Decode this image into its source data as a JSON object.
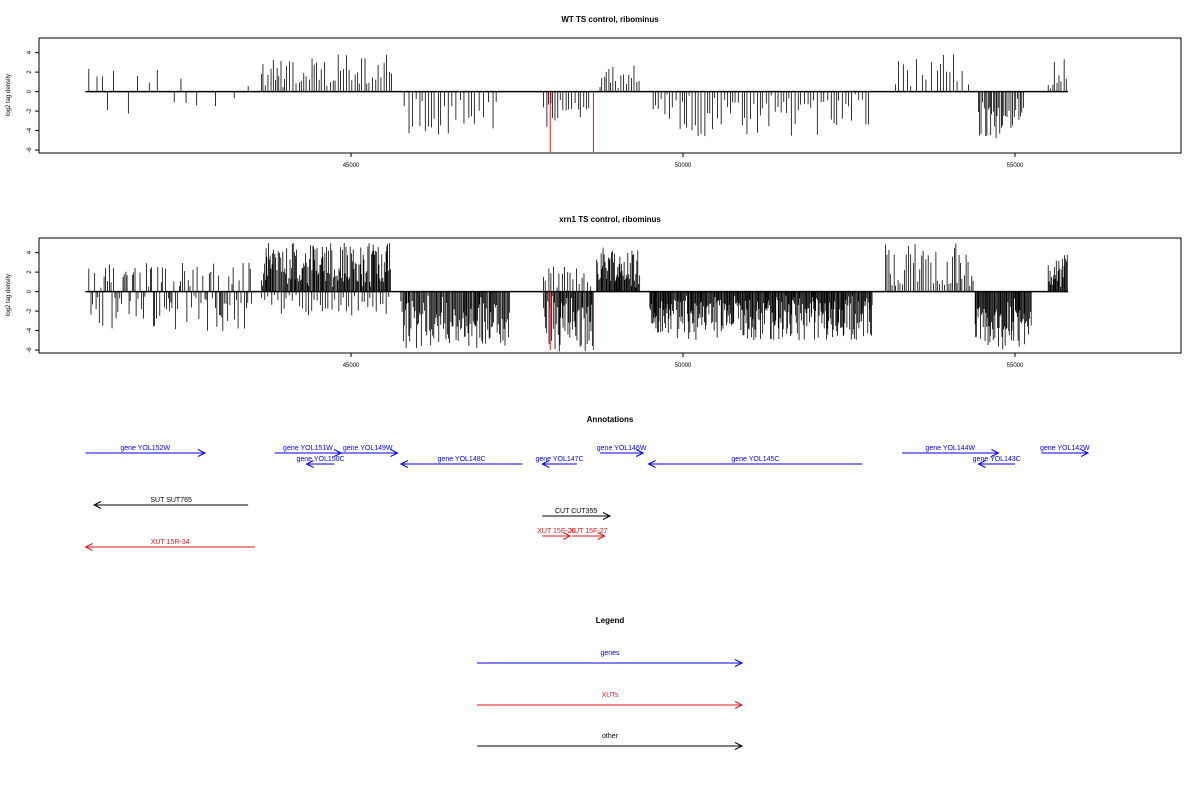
{
  "chart_data": [
    {
      "type": "bar",
      "title": "WT TS control, ribominus",
      "ylabel": "log2 tag density",
      "xlim": [
        40300,
        57500
      ],
      "ylim": [
        -6.3,
        5.5
      ],
      "yticks": [
        -6,
        -4,
        -2,
        0,
        2,
        4
      ],
      "xticks": [
        45000,
        50000,
        55000
      ],
      "xtick_labels": [
        "45000",
        "50000",
        "55000"
      ],
      "baseline": {
        "from": 41000,
        "to": 55800
      },
      "highlight_color": "#e31a1c",
      "highlights": [
        {
          "x": 48000,
          "y": -6.2
        },
        {
          "x": 48650,
          "y": -6.2
        }
      ],
      "regions": [
        {
          "from": 41050,
          "to": 43500,
          "step": 100,
          "mode": "sparse",
          "ymax": 2.3,
          "ymin": -3.0
        },
        {
          "from": 43650,
          "to": 45650,
          "step": 38,
          "mode": "pos",
          "ymax": 3.8,
          "ymin": 0.8
        },
        {
          "from": 45800,
          "to": 47200,
          "step": 55,
          "mode": "neg",
          "ymax": -0.6,
          "ymin": -4.5
        },
        {
          "from": 47900,
          "to": 48600,
          "step": 40,
          "mode": "neg",
          "ymax": -1.0,
          "ymin": -4.2
        },
        {
          "from": 48750,
          "to": 49350,
          "step": 35,
          "mode": "pos",
          "ymax": 2.8,
          "ymin": 0.6
        },
        {
          "from": 49550,
          "to": 52800,
          "step": 45,
          "mode": "neg",
          "ymax": -0.6,
          "ymin": -4.6
        },
        {
          "from": 53200,
          "to": 54350,
          "step": 70,
          "mode": "pos",
          "ymax": 4.0,
          "ymin": 0.5
        },
        {
          "from": 54450,
          "to": 55150,
          "step": 22,
          "mode": "neg",
          "ymax": -1.5,
          "ymin": -5.0
        },
        {
          "from": 55500,
          "to": 55800,
          "step": 35,
          "mode": "pos",
          "ymax": 3.8,
          "ymin": 0.6
        }
      ]
    },
    {
      "type": "bar",
      "title": "xrn1 TS control, ribominus",
      "ylabel": "log2 tag density",
      "xlim": [
        40300,
        57500
      ],
      "ylim": [
        -6.3,
        5.5
      ],
      "yticks": [
        -6,
        -4,
        -2,
        0,
        2,
        4
      ],
      "xticks": [
        45000,
        50000,
        55000
      ],
      "xtick_labels": [
        "45000",
        "50000",
        "55000"
      ],
      "baseline": {
        "from": 41000,
        "to": 55800
      },
      "highlight_color": "#e31a1c",
      "highlights": [
        {
          "x": 48000,
          "y": -6.0
        },
        {
          "x": 48650,
          "y": -6.0
        }
      ],
      "regions": [
        {
          "from": 41050,
          "to": 43500,
          "step": 24,
          "mode": "mixed",
          "ymax": 2.8,
          "ymin": -3.8
        },
        {
          "from": 43650,
          "to": 45600,
          "step": 14,
          "mode": "pos",
          "ymax": 5.0,
          "ymin": 1.0
        },
        {
          "from": 43650,
          "to": 45600,
          "step": 45,
          "mode": "neg",
          "ymax": -0.5,
          "ymin": -2.6
        },
        {
          "from": 45750,
          "to": 47400,
          "step": 16,
          "mode": "neg",
          "ymax": -1.0,
          "ymin": -5.8
        },
        {
          "from": 47900,
          "to": 48650,
          "step": 14,
          "mode": "neg",
          "ymax": -1.0,
          "ymin": -6.2
        },
        {
          "from": 47900,
          "to": 48650,
          "step": 40,
          "mode": "pos",
          "ymax": 2.6,
          "ymin": 0.4
        },
        {
          "from": 48700,
          "to": 49350,
          "step": 12,
          "mode": "pos",
          "ymax": 4.8,
          "ymin": 1.0
        },
        {
          "from": 49500,
          "to": 52850,
          "step": 12,
          "mode": "neg",
          "ymax": -0.8,
          "ymin": -5.0
        },
        {
          "from": 53050,
          "to": 54400,
          "step": 30,
          "mode": "pos",
          "ymax": 5.0,
          "ymin": 0.6
        },
        {
          "from": 54400,
          "to": 55250,
          "step": 12,
          "mode": "neg",
          "ymax": -1.5,
          "ymin": -6.0
        },
        {
          "from": 55500,
          "to": 55800,
          "step": 12,
          "mode": "pos",
          "ymax": 3.8,
          "ymin": 1.0
        }
      ]
    }
  ],
  "annotations": {
    "title": "Annotations",
    "colors": {
      "gene": "#0000ff",
      "xut": "#e31a1c",
      "other": "#000000"
    },
    "features": [
      {
        "label": "gene YOL152W",
        "start": 41000,
        "end": 42800,
        "strand": "+",
        "class": "gene",
        "row": 0
      },
      {
        "label": "gene YOL151W",
        "start": 43850,
        "end": 44850,
        "strand": "+",
        "class": "gene",
        "row": 0
      },
      {
        "label": "gene YOL150C",
        "start": 44330,
        "end": 44750,
        "strand": "-",
        "class": "gene",
        "row": 1
      },
      {
        "label": "gene YOL149W",
        "start": 44800,
        "end": 45700,
        "strand": "+",
        "class": "gene",
        "row": 0
      },
      {
        "label": "gene YOL148C",
        "start": 45750,
        "end": 47580,
        "strand": "-",
        "class": "gene",
        "row": 1
      },
      {
        "label": "gene YOL147C",
        "start": 47880,
        "end": 48400,
        "strand": "-",
        "class": "gene",
        "row": 1
      },
      {
        "label": "gene YOL146W",
        "start": 48750,
        "end": 49400,
        "strand": "+",
        "class": "gene",
        "row": 0
      },
      {
        "label": "gene YOL145C",
        "start": 49480,
        "end": 52700,
        "strand": "-",
        "class": "gene",
        "row": 1
      },
      {
        "label": "gene YOL144W",
        "start": 53300,
        "end": 54750,
        "strand": "+",
        "class": "gene",
        "row": 0
      },
      {
        "label": "gene YOL143C",
        "start": 54450,
        "end": 55000,
        "strand": "-",
        "class": "gene",
        "row": 1
      },
      {
        "label": "gene YOL142W",
        "start": 55400,
        "end": 56100,
        "strand": "+",
        "class": "gene",
        "row": 0
      },
      {
        "label": "SUT SUT765",
        "start": 41130,
        "end": 43450,
        "strand": "-",
        "class": "other",
        "row": 4
      },
      {
        "label": "CUT CUT355",
        "start": 47880,
        "end": 48900,
        "strand": "+",
        "class": "other",
        "row": 5
      },
      {
        "label": "XUT 15F-26",
        "start": 47880,
        "end": 48300,
        "strand": "+",
        "class": "xut",
        "row": 7
      },
      {
        "label": "XUT 15F-27",
        "start": 48330,
        "end": 48820,
        "strand": "+",
        "class": "xut",
        "row": 7
      },
      {
        "label": "XUT 15R-34",
        "start": 41000,
        "end": 43550,
        "strand": "-",
        "class": "xut",
        "row": 8
      }
    ]
  },
  "legend": {
    "title": "Legend",
    "items": [
      {
        "label": "genes",
        "class": "gene"
      },
      {
        "label": "XUTs",
        "class": "xut"
      },
      {
        "label": "other",
        "class": "other"
      }
    ]
  }
}
